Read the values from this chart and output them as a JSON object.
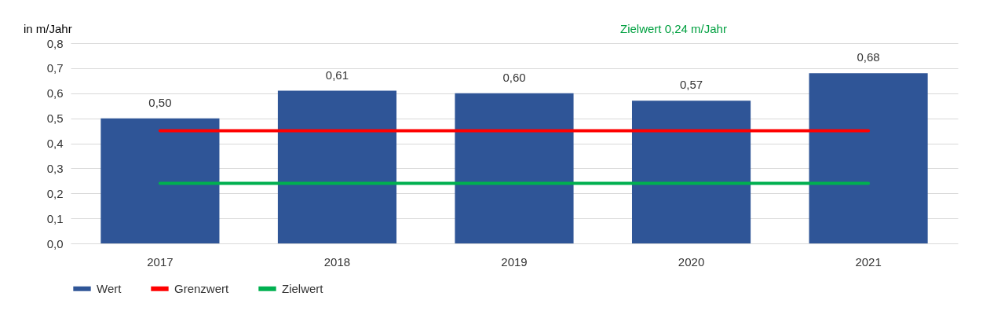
{
  "chart_data": {
    "type": "bar",
    "ylabel": "in m/Jahr",
    "annotations": [
      "Zielwert 0,24 m/Jahr"
    ],
    "categories": [
      "2017",
      "2018",
      "2019",
      "2020",
      "2021"
    ],
    "series": [
      {
        "name": "Wert",
        "color": "#2f5597",
        "values": [
          0.5,
          0.61,
          0.6,
          0.57,
          0.68
        ],
        "value_labels": [
          "0,50",
          "0,61",
          "0,60",
          "0,57",
          "0,68"
        ]
      },
      {
        "name": "Grenzwert",
        "type": "line",
        "color": "#ff0000",
        "values": [
          0.45,
          0.45,
          0.45,
          0.45,
          0.45
        ]
      },
      {
        "name": "Zielwert",
        "type": "line",
        "color": "#00b050",
        "values": [
          0.24,
          0.24,
          0.24,
          0.24,
          0.24
        ]
      }
    ],
    "ylim": [
      0,
      0.8
    ],
    "yticks": [
      {
        "value": 0,
        "label": "0,0"
      },
      {
        "value": 0.1,
        "label": "0,1"
      },
      {
        "value": 0.2,
        "label": "0,2"
      },
      {
        "value": 0.3,
        "label": "0,3"
      },
      {
        "value": 0.4,
        "label": "0,4"
      },
      {
        "value": 0.5,
        "label": "0,5"
      },
      {
        "value": 0.6,
        "label": "0,6"
      },
      {
        "value": 0.7,
        "label": "0,7"
      },
      {
        "value": 0.8,
        "label": "0,8"
      }
    ],
    "grid": "y",
    "legend": "bottom"
  }
}
